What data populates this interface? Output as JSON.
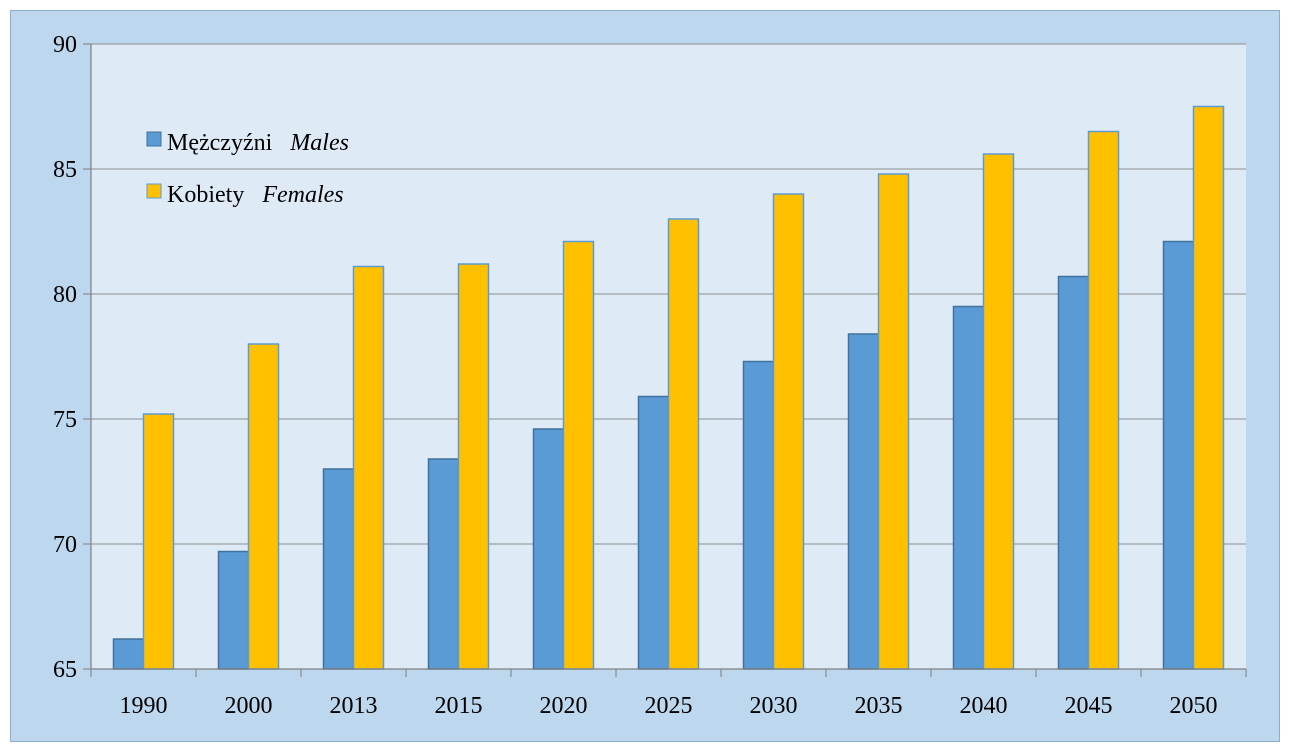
{
  "chart_data": {
    "type": "bar",
    "categories": [
      "1990",
      "2000",
      "2013",
      "2015",
      "2020",
      "2025",
      "2030",
      "2035",
      "2040",
      "2045",
      "2050"
    ],
    "series": [
      {
        "name": "Mężczyźni",
        "name_en": "Males",
        "color": "#5b9bd5",
        "values": [
          66.2,
          69.7,
          73.0,
          73.4,
          74.6,
          75.9,
          77.3,
          78.4,
          79.5,
          80.7,
          82.1
        ]
      },
      {
        "name": "Kobiety",
        "name_en": "Females",
        "color": "#ffc000",
        "values": [
          75.2,
          78.0,
          81.1,
          81.2,
          82.1,
          83.0,
          84.0,
          84.8,
          85.6,
          86.5,
          87.5
        ]
      }
    ],
    "ylim": [
      65,
      90
    ],
    "yticks": [
      65,
      70,
      75,
      80,
      85,
      90
    ],
    "grid": true,
    "legend_position": "top-left",
    "background": "#bdd7ee",
    "plot_background": "#deebf7"
  }
}
